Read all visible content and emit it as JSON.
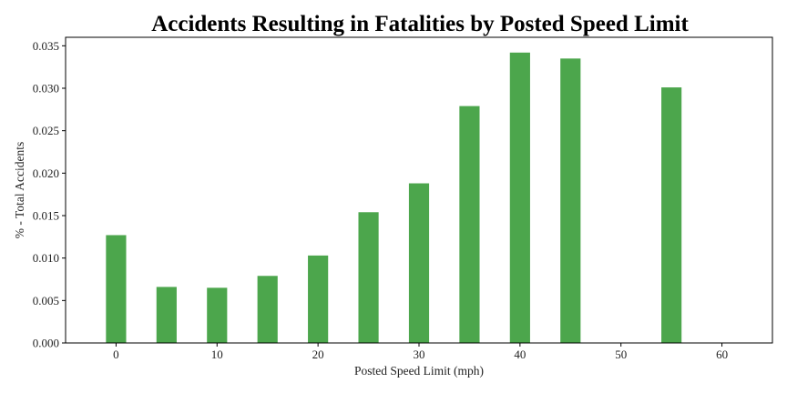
{
  "chart_data": {
    "type": "bar",
    "title": "Accidents Resulting in Fatalities by Posted Speed Limit",
    "xlabel": "Posted Speed Limit (mph)",
    "ylabel": "% - Total Accidents",
    "x": [
      0,
      5,
      10,
      15,
      20,
      25,
      30,
      35,
      40,
      45,
      55
    ],
    "values": [
      0.0127,
      0.0066,
      0.0065,
      0.0079,
      0.0103,
      0.0154,
      0.0188,
      0.0279,
      0.0342,
      0.0335,
      0.0301
    ],
    "xlim": [
      -5,
      65
    ],
    "ylim": [
      0,
      0.036
    ],
    "xticks": [
      0,
      10,
      20,
      30,
      40,
      50,
      60
    ],
    "xtick_labels": [
      "0",
      "10",
      "20",
      "30",
      "40",
      "50",
      "60"
    ],
    "yticks": [
      0,
      0.005,
      0.01,
      0.015,
      0.02,
      0.025,
      0.03,
      0.035
    ],
    "ytick_labels": [
      "0.000",
      "0.005",
      "0.010",
      "0.015",
      "0.020",
      "0.025",
      "0.030",
      "0.035"
    ],
    "bar_color": "#4ca64c",
    "grid": false
  }
}
